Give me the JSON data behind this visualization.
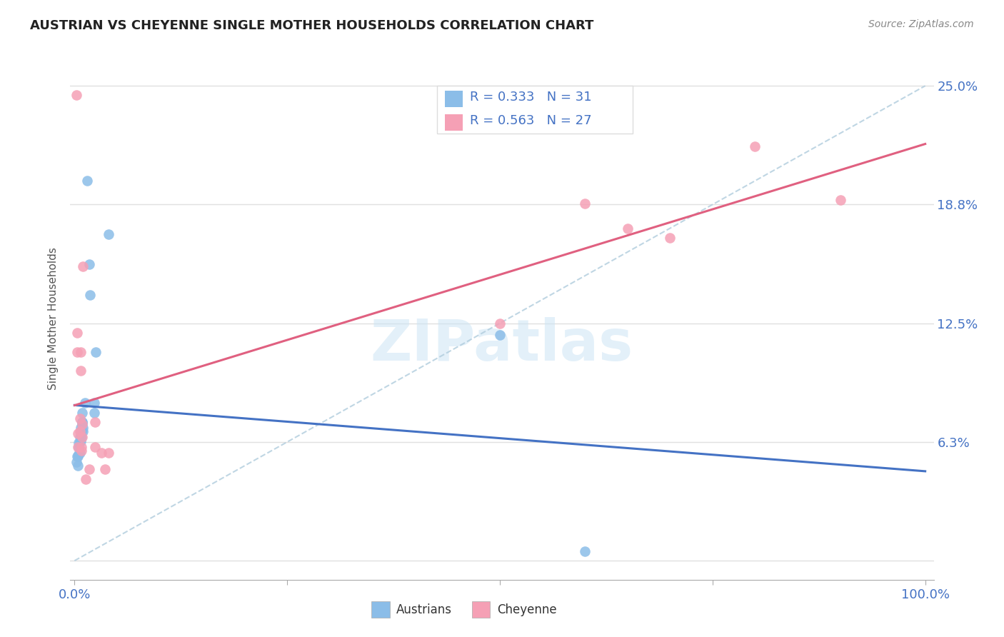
{
  "title": "AUSTRIAN VS CHEYENNE SINGLE MOTHER HOUSEHOLDS CORRELATION CHART",
  "source": "Source: ZipAtlas.com",
  "ylabel": "Single Mother Households",
  "color_austrians": "#8BBDE8",
  "color_cheyenne": "#F5A0B5",
  "color_trend_austrians": "#4472C4",
  "color_trend_cheyenne": "#E06080",
  "color_diag": "#B0CCDD",
  "background_color": "#FFFFFF",
  "grid_color": "#E0E0E0",
  "austrians_x": [
    0.002,
    0.003,
    0.004,
    0.004,
    0.005,
    0.005,
    0.005,
    0.006,
    0.006,
    0.006,
    0.007,
    0.007,
    0.007,
    0.008,
    0.008,
    0.009,
    0.009,
    0.009,
    0.009,
    0.01,
    0.01,
    0.012,
    0.015,
    0.017,
    0.018,
    0.023,
    0.023,
    0.025,
    0.04,
    0.5,
    0.6
  ],
  "austrians_y": [
    0.052,
    0.055,
    0.055,
    0.05,
    0.06,
    0.062,
    0.056,
    0.065,
    0.063,
    0.057,
    0.07,
    0.068,
    0.063,
    0.065,
    0.068,
    0.073,
    0.073,
    0.072,
    0.078,
    0.07,
    0.068,
    0.083,
    0.2,
    0.156,
    0.14,
    0.083,
    0.078,
    0.11,
    0.172,
    0.119,
    0.005
  ],
  "cheyenne_x": [
    0.002,
    0.003,
    0.003,
    0.004,
    0.004,
    0.006,
    0.006,
    0.007,
    0.007,
    0.008,
    0.008,
    0.009,
    0.009,
    0.01,
    0.013,
    0.017,
    0.024,
    0.024,
    0.032,
    0.036,
    0.04,
    0.5,
    0.6,
    0.65,
    0.7,
    0.8,
    0.9
  ],
  "cheyenne_y": [
    0.245,
    0.12,
    0.11,
    0.067,
    0.06,
    0.075,
    0.068,
    0.11,
    0.1,
    0.06,
    0.058,
    0.072,
    0.065,
    0.155,
    0.043,
    0.048,
    0.073,
    0.06,
    0.057,
    0.048,
    0.057,
    0.125,
    0.188,
    0.175,
    0.17,
    0.218,
    0.19
  ],
  "ytick_vals": [
    0.0,
    0.0625,
    0.125,
    0.1875,
    0.25
  ],
  "ytick_labels": [
    "",
    "6.3%",
    "12.5%",
    "18.8%",
    "25.0%"
  ]
}
